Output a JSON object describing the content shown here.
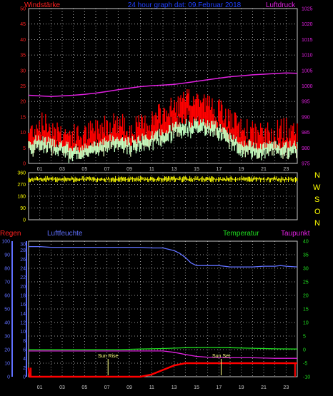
{
  "colors": {
    "background": "#000000",
    "grid": "#c8c8c8",
    "wind_label": "#ff2020",
    "title": "#2040ff",
    "pressure": "#e020e0",
    "wind_gust": "#ff0000",
    "wind_avg": "#c0ffc0",
    "direction": "#ffff00",
    "rain_label": "#ff2020",
    "humidity": "#6070ff",
    "temperature": "#20e020",
    "dewpoint": "#e020e0",
    "rain": "#ff0000",
    "sun_marker": "#ffff80"
  },
  "header": {
    "left": "Windstärke",
    "center": "24 hour graph dat: 09.Februar 2018",
    "right": "Luftdruck"
  },
  "compass": [
    "N",
    "W",
    "S",
    "O",
    "N"
  ],
  "bottom_header": {
    "rain": "Regen",
    "humidity": "Luftfeuchte",
    "temperature": "Temperatur",
    "dewpoint": "Taupunkt"
  },
  "sun": {
    "rise_label": "Sun Rise",
    "rise_hour": 7.1,
    "set_label": "Sun Set",
    "set_hour": 17.2
  },
  "chart_data": [
    {
      "type": "line",
      "panel": "wind_pressure",
      "x_ticks": [
        "01",
        "03",
        "05",
        "07",
        "09",
        "11",
        "13",
        "15",
        "17",
        "19",
        "21",
        "23"
      ],
      "xlim": [
        0,
        24
      ],
      "y_left_ticks": [
        0,
        5,
        10,
        15,
        20,
        25,
        30,
        35,
        40,
        45,
        50
      ],
      "y_left_lim": [
        0,
        50
      ],
      "y_right_ticks": [
        975,
        980,
        985,
        990,
        995,
        1000,
        1005,
        1010,
        1015,
        1020,
        1025
      ],
      "y_right_lim": [
        975,
        1025
      ],
      "grid": true,
      "series": [
        {
          "name": "Windstärke",
          "axis": "left",
          "kind": "gust",
          "x": [
            0,
            1,
            2,
            3,
            4,
            5,
            6,
            7,
            8,
            9,
            10,
            11,
            12,
            13,
            14,
            15,
            16,
            17,
            18,
            19,
            20,
            21,
            22,
            23,
            24
          ],
          "values": [
            10,
            13,
            12,
            10,
            9,
            9,
            11,
            13,
            13,
            11,
            12,
            14,
            16,
            18,
            20,
            21,
            19,
            17,
            14,
            11,
            10,
            9,
            10,
            11,
            10
          ]
        },
        {
          "name": "",
          "axis": "left",
          "kind": "average",
          "x": [
            0,
            1,
            2,
            3,
            4,
            5,
            6,
            7,
            8,
            9,
            10,
            11,
            12,
            13,
            14,
            15,
            16,
            17,
            18,
            19,
            20,
            21,
            22,
            23,
            24
          ],
          "values": [
            7,
            8,
            7,
            6,
            5,
            5,
            6,
            8,
            8,
            7,
            8,
            9,
            10,
            12,
            13,
            13,
            13,
            12,
            9,
            7,
            6,
            6,
            6,
            6,
            6
          ]
        },
        {
          "name": "Luftdruck",
          "axis": "right",
          "x": [
            0,
            1,
            2,
            3,
            4,
            5,
            6,
            7,
            8,
            9,
            10,
            11,
            12,
            13,
            14,
            15,
            16,
            17,
            18,
            19,
            20,
            21,
            22,
            23,
            24
          ],
          "values": [
            997,
            996.8,
            996.6,
            996.8,
            997,
            997.3,
            997.7,
            998.2,
            998.8,
            999.3,
            999.8,
            1000.1,
            1000.3,
            1000.5,
            1001,
            1001.5,
            1002,
            1002.5,
            1003,
            1003.3,
            1003.6,
            1003.8,
            1004,
            1004.2,
            1004.1
          ]
        }
      ]
    },
    {
      "type": "scatter",
      "panel": "wind_direction",
      "xlim": [
        0,
        24
      ],
      "y_ticks": [
        0,
        90,
        180,
        270,
        360
      ],
      "ylim": [
        0,
        360
      ],
      "grid": true,
      "series": [
        {
          "name": "",
          "base_value": 310,
          "spread": 40,
          "x": [
            0,
            24
          ]
        }
      ]
    },
    {
      "type": "line",
      "panel": "humidity_temp_rain",
      "x_ticks": [
        "01",
        "03",
        "05",
        "07",
        "09",
        "11",
        "13",
        "15",
        "17",
        "19",
        "21",
        "23"
      ],
      "xlim": [
        0,
        24
      ],
      "y_rain_ticks": [
        0,
        2,
        4,
        6,
        8,
        10,
        12,
        14,
        16,
        18,
        20,
        22,
        24,
        26,
        28,
        30
      ],
      "y_hum_ticks": [
        0,
        10,
        20,
        30,
        40,
        50,
        60,
        70,
        80,
        90,
        100
      ],
      "y_hum_lim": [
        0,
        100
      ],
      "y_temp_ticks": [
        -10,
        -5,
        0,
        5,
        10,
        15,
        20,
        25,
        30,
        35,
        40
      ],
      "y_temp_lim": [
        -10,
        40
      ],
      "grid": true,
      "series": [
        {
          "name": "Luftfeuchte",
          "axis": "humidity",
          "x": [
            0,
            1,
            2,
            3,
            4,
            5,
            6,
            7,
            8,
            9,
            10,
            11,
            12,
            13,
            13.5,
            14,
            14.5,
            15,
            16,
            17,
            18,
            19,
            20,
            21,
            22,
            22.5,
            23,
            24
          ],
          "values": [
            96,
            96,
            95.5,
            95.5,
            95.5,
            95.5,
            95.5,
            95.5,
            95.5,
            95.5,
            95.5,
            95,
            95,
            93,
            91,
            88,
            84,
            82,
            82,
            82,
            81,
            81,
            81,
            81.5,
            81.5,
            82,
            81.5,
            81
          ]
        },
        {
          "name": "Temperatur",
          "axis": "temperature",
          "x": [
            0,
            2,
            4,
            6,
            8,
            10,
            12,
            14,
            16,
            18,
            20,
            22,
            24
          ],
          "values": [
            0,
            0,
            0,
            0,
            0,
            0.2,
            0.4,
            0.7,
            0.8,
            0.7,
            0.5,
            0.3,
            0.2
          ]
        },
        {
          "name": "Taupunkt",
          "axis": "temperature",
          "x": [
            0,
            2,
            4,
            6,
            8,
            10,
            12,
            13,
            14,
            15,
            16,
            18,
            20,
            22,
            24
          ],
          "values": [
            -0.5,
            -0.5,
            -0.5,
            -0.5,
            -0.5,
            -0.5,
            -0.5,
            -1,
            -1.8,
            -2.5,
            -2.8,
            -3,
            -3,
            -3.2,
            -3.2
          ]
        },
        {
          "name": "Regen",
          "axis": "rain",
          "x": [
            0,
            0.1,
            0.3,
            10,
            11,
            12,
            13,
            14,
            24
          ],
          "values": [
            2,
            0,
            0,
            0,
            0.5,
            1.5,
            2.5,
            3,
            3
          ]
        }
      ]
    }
  ]
}
